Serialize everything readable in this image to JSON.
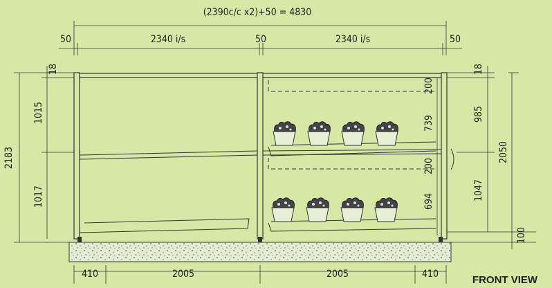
{
  "header": {
    "title": "(2390c/c x2)+50 = 4830"
  },
  "top_dims": [
    "50",
    "2340 i/s",
    "50",
    "2340 i/s",
    "50"
  ],
  "left_dims": {
    "top": "18",
    "upper": "1015",
    "lower": "1017",
    "total": "2183"
  },
  "middle_dims": [
    "200",
    "739",
    "200",
    "694"
  ],
  "right_dims": {
    "top": "18",
    "upper": "985",
    "lower": "1047",
    "base": "100",
    "total": "2050"
  },
  "bottom_dims": [
    "410",
    "2005",
    "2005",
    "410"
  ],
  "view_label": "FRONT VIEW"
}
